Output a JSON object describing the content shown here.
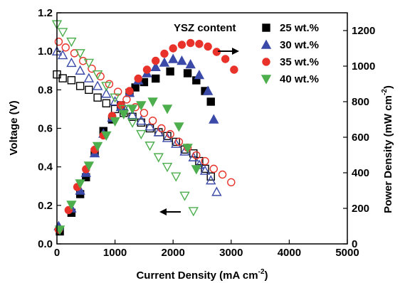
{
  "chart_data": {
    "type": "scatter",
    "xlabel": "Current Density (mA cm",
    "xlabel_sup": "-2",
    "xlabel_end": ")",
    "ylabel_left": "Voltage (V)",
    "ylabel_right": "Power Density  (mW cm",
    "ylabel_right_sup": "-2",
    "ylabel_right_end": ")",
    "xlim": [
      0,
      5000
    ],
    "ylim_left": [
      0.0,
      1.2
    ],
    "ylim_right": [
      0,
      1300
    ],
    "x_ticks": [
      "0",
      "1000",
      "2000",
      "3000",
      "4000",
      "5000"
    ],
    "y_left_ticks": [
      "0.0",
      "0.2",
      "0.4",
      "0.6",
      "0.8",
      "1.0",
      "1.2"
    ],
    "y_right_ticks": [
      "0",
      "200",
      "400",
      "600",
      "800",
      "1000",
      "1200"
    ],
    "legend_title": "YSZ content",
    "legend_placement": "top-right",
    "annotations": [
      {
        "text": "arrow pointing right to power density curves"
      },
      {
        "text": "arrow pointing left to voltage curves"
      }
    ],
    "series": [
      {
        "name": "25 wt.%",
        "marker": "square",
        "color": "#000000",
        "voltage": {
          "x": [
            0,
            100,
            250,
            400,
            550,
            700,
            850,
            1000,
            1150,
            1300,
            1450,
            1600,
            1750,
            1900,
            2050,
            2200,
            2350,
            2450,
            2550,
            2650
          ],
          "y": [
            0.88,
            0.86,
            0.85,
            0.82,
            0.8,
            0.76,
            0.73,
            0.7,
            0.68,
            0.66,
            0.63,
            0.6,
            0.58,
            0.56,
            0.53,
            0.49,
            0.47,
            0.43,
            0.39,
            0.35
          ]
        },
        "power": {
          "x": [
            50,
            250,
            400,
            500,
            650,
            800,
            950,
            1100,
            1250,
            1350,
            1500,
            1700,
            1950,
            2250,
            2400,
            2550,
            2650
          ],
          "y": [
            70,
            175,
            280,
            375,
            515,
            635,
            700,
            780,
            850,
            880,
            910,
            930,
            970,
            960,
            920,
            860,
            800
          ]
        }
      },
      {
        "name": "30 wt.%",
        "marker": "triangle-up",
        "color": "#3b4aa8",
        "voltage": {
          "x": [
            0,
            100,
            250,
            400,
            550,
            700,
            850,
            1000,
            1150,
            1300,
            1450,
            1600,
            1750,
            1900,
            2050,
            2200,
            2350,
            2450,
            2550,
            2650,
            2750
          ],
          "y": [
            1.0,
            0.98,
            0.94,
            0.9,
            0.86,
            0.82,
            0.78,
            0.74,
            0.71,
            0.67,
            0.64,
            0.61,
            0.58,
            0.55,
            0.52,
            0.48,
            0.45,
            0.41,
            0.38,
            0.33,
            0.27
          ]
        },
        "power": {
          "x": [
            30,
            250,
            400,
            500,
            650,
            800,
            950,
            1100,
            1250,
            1400,
            1550,
            1700,
            1850,
            2000,
            2150,
            2300,
            2450,
            2600,
            2700
          ],
          "y": [
            100,
            200,
            300,
            400,
            510,
            620,
            710,
            770,
            850,
            920,
            960,
            995,
            1020,
            1040,
            1030,
            1010,
            950,
            860,
            700
          ]
        }
      },
      {
        "name": "35 wt.%",
        "marker": "circle",
        "color": "#e8322a",
        "voltage": {
          "x": [
            30,
            150,
            300,
            450,
            600,
            750,
            900,
            1050,
            1200,
            1350,
            1500,
            1650,
            1800,
            1950,
            2100,
            2250,
            2400,
            2550,
            2700,
            2850,
            3000
          ],
          "y": [
            1.05,
            1.02,
            0.99,
            0.95,
            0.91,
            0.87,
            0.83,
            0.79,
            0.75,
            0.71,
            0.68,
            0.64,
            0.6,
            0.57,
            0.53,
            0.5,
            0.46,
            0.43,
            0.39,
            0.36,
            0.32
          ]
        },
        "power": {
          "x": [
            30,
            200,
            350,
            500,
            650,
            800,
            950,
            1100,
            1250,
            1400,
            1550,
            1700,
            1850,
            2000,
            2150,
            2300,
            2450,
            2600,
            2750,
            2900,
            3050
          ],
          "y": [
            80,
            190,
            320,
            420,
            530,
            610,
            720,
            780,
            860,
            930,
            980,
            1030,
            1070,
            1100,
            1120,
            1130,
            1125,
            1110,
            1080,
            1040,
            980
          ]
        }
      },
      {
        "name": "40 wt.%",
        "marker": "triangle-down",
        "color": "#4cae4c",
        "voltage": {
          "x": [
            0,
            100,
            250,
            400,
            550,
            700,
            850,
            1000,
            1150,
            1300,
            1450,
            1600,
            1750,
            1900,
            2050,
            2200,
            2350
          ],
          "y": [
            1.14,
            1.1,
            1.05,
            0.99,
            0.94,
            0.88,
            0.82,
            0.76,
            0.7,
            0.63,
            0.57,
            0.51,
            0.45,
            0.4,
            0.35,
            0.25,
            0.17
          ]
        },
        "power": {
          "x": [
            50,
            250,
            400,
            550,
            700,
            850,
            1000,
            1150,
            1300,
            1450,
            1650,
            1900,
            2100,
            2250,
            2400
          ],
          "y": [
            80,
            220,
            340,
            440,
            550,
            610,
            690,
            730,
            760,
            780,
            800,
            760,
            660,
            540,
            420
          ]
        }
      }
    ]
  }
}
